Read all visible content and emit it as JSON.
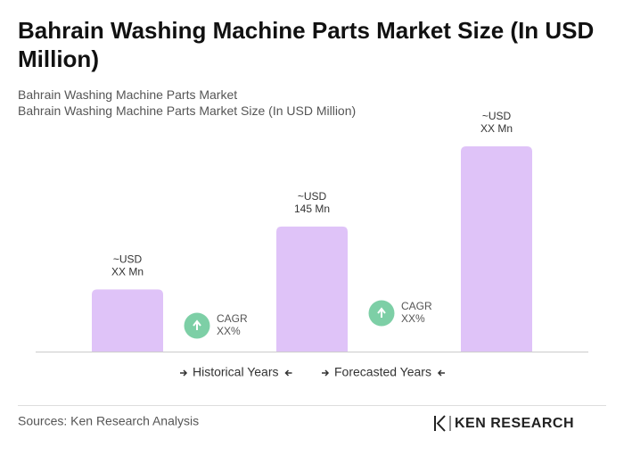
{
  "chart_data": {
    "type": "bar",
    "title": "Bahrain Washing Machine Parts Market Size (In USD Million)",
    "subtitle": [
      "Bahrain Washing Machine Parts Market",
      "Bahrain Washing Machine Parts Market Size (In USD Million)"
    ],
    "categories": [
      null,
      null,
      null
    ],
    "values": [
      72,
      145,
      238
    ],
    "value_labels": [
      [
        "~USD",
        "XX Mn"
      ],
      [
        "~USD",
        "145 Mn"
      ],
      [
        "~USD",
        "XX Mn"
      ]
    ],
    "color": "#dfc3f8",
    "cagr_labels": [
      [
        "CAGR",
        "XX%"
      ],
      [
        "CAGR",
        "XX%"
      ]
    ],
    "cagr_color": "#7dcfa6",
    "periods": [
      "Historical Years",
      "Forecasted Years"
    ],
    "source": "Sources: Ken Research Analysis",
    "logo": "KEN RESEARCH"
  }
}
